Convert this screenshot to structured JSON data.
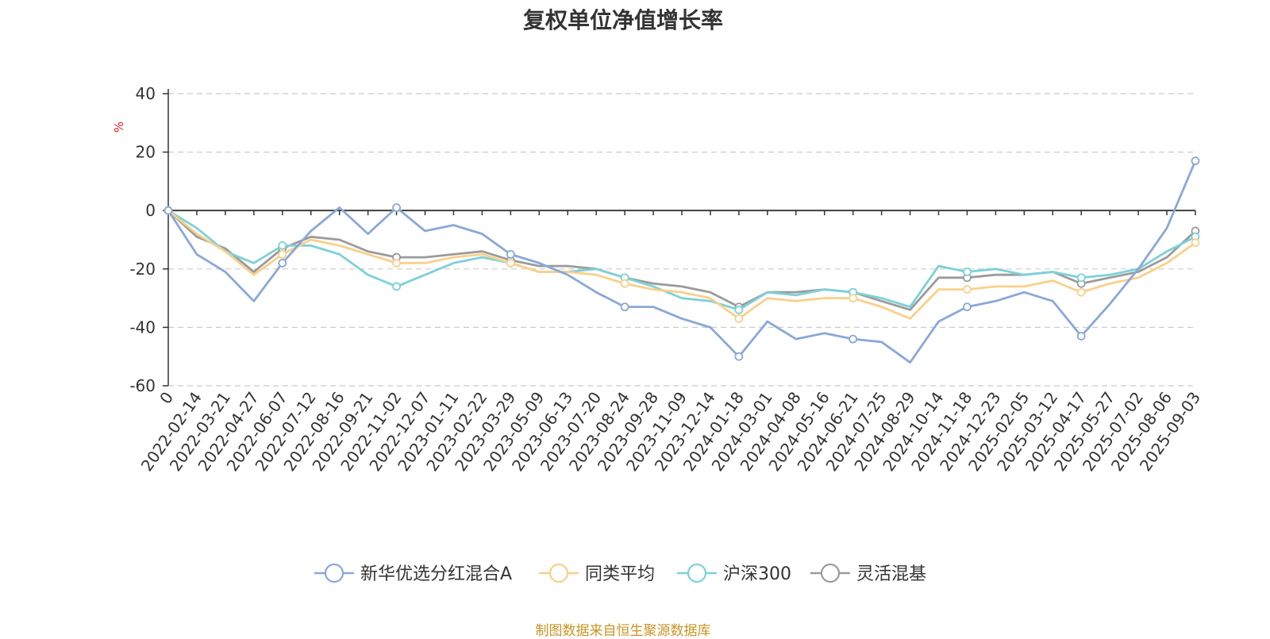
{
  "page": {
    "title": "复权单位净值增长率",
    "source_note": "制图数据来自恒生聚源数据库",
    "source_color": "#c99424"
  },
  "chart_data": {
    "type": "line",
    "title": "复权单位净值增长率",
    "ylabel": "%",
    "ylabel_color": "#e02020",
    "ylim": [
      -60,
      40
    ],
    "yticks": [
      "40",
      "20",
      "0",
      "-20",
      "-40",
      "-60"
    ],
    "grid": true,
    "legend_position": "bottom",
    "x_ticks": [
      "0",
      "2022-02-14",
      "2022-03-21",
      "2022-04-27",
      "2022-06-07",
      "2022-07-12",
      "2022-08-16",
      "2022-09-21",
      "2022-11-02",
      "2022-12-07",
      "2023-01-11",
      "2023-02-22",
      "2023-03-29",
      "2023-05-09",
      "2023-06-13",
      "2023-07-20",
      "2023-08-24",
      "2023-09-28",
      "2023-11-09",
      "2023-12-14",
      "2024-01-18",
      "2024-03-01",
      "2024-04-08",
      "2024-05-16",
      "2024-06-21",
      "2024-07-25",
      "2024-08-29",
      "2024-10-14",
      "2024-11-18",
      "2024-12-23",
      "2025-02-05",
      "2025-03-12",
      "2025-04-17",
      "2025-05-27",
      "2025-07-02",
      "2025-08-06",
      "2025-09-03"
    ],
    "series": [
      {
        "name": "新华优选分红混合A",
        "color": "#8aa8d8",
        "values": [
          0,
          -15,
          -21,
          -31,
          -18,
          -7,
          1,
          -8,
          1,
          -7,
          -5,
          -8,
          -15,
          -18,
          -22,
          -28,
          -33,
          -33,
          -37,
          -40,
          -50,
          -38,
          -44,
          -42,
          -44,
          -45,
          -52,
          -38,
          -33,
          -31,
          -28,
          -31,
          -43,
          -32,
          -20,
          -6,
          17
        ]
      },
      {
        "name": "同类平均",
        "color": "#f9d08a",
        "values": [
          0,
          -8,
          -14,
          -22,
          -15,
          -10,
          -12,
          -15,
          -18,
          -18,
          -16,
          -15,
          -18,
          -21,
          -21,
          -22,
          -25,
          -27,
          -28,
          -30,
          -37,
          -30,
          -31,
          -30,
          -30,
          -33,
          -37,
          -27,
          -27,
          -26,
          -26,
          -24,
          -28,
          -25,
          -23,
          -18,
          -11
        ]
      },
      {
        "name": "沪深300",
        "color": "#7dd1d8",
        "values": [
          0,
          -6,
          -14,
          -18,
          -12,
          -12,
          -15,
          -22,
          -26,
          -22,
          -18,
          -16,
          -18,
          -21,
          -21,
          -20,
          -23,
          -26,
          -30,
          -31,
          -34,
          -28,
          -29,
          -27,
          -28,
          -30,
          -33,
          -19,
          -21,
          -20,
          -22,
          -21,
          -23,
          -22,
          -20,
          -14,
          -9
        ]
      },
      {
        "name": "灵活混基",
        "color": "#9b9b9b",
        "values": [
          0,
          -9,
          -13,
          -21,
          -13,
          -9,
          -10,
          -14,
          -16,
          -16,
          -15,
          -14,
          -17,
          -19,
          -19,
          -20,
          -23,
          -25,
          -26,
          -28,
          -33,
          -28,
          -28,
          -27,
          -28,
          -31,
          -34,
          -23,
          -23,
          -22,
          -22,
          -21,
          -25,
          -23,
          -21,
          -16,
          -7
        ]
      }
    ]
  }
}
